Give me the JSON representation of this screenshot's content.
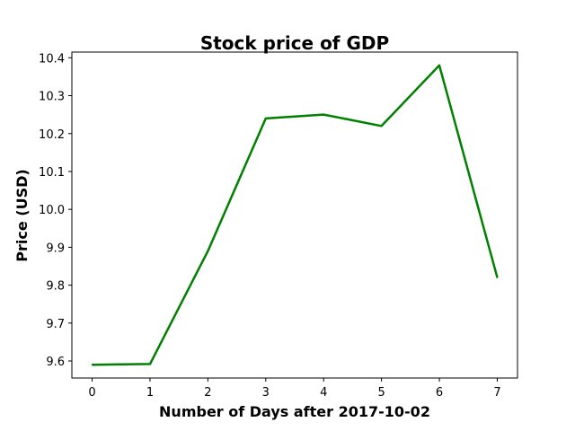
{
  "chart_data": {
    "type": "line",
    "title": "Stock price of GDP",
    "xlabel": "Number of Days after 2017-10-02",
    "ylabel": "Price (USD)",
    "x": [
      0,
      1,
      2,
      3,
      4,
      5,
      6,
      7
    ],
    "series": [
      {
        "values": [
          9.59,
          9.592,
          9.89,
          10.24,
          10.25,
          10.22,
          10.38,
          9.82
        ],
        "color": "#008000"
      }
    ],
    "xlim": [
      -0.35,
      7.35
    ],
    "ylim": [
      9.555,
      10.415
    ],
    "xticks": [
      0,
      1,
      2,
      3,
      4,
      5,
      6,
      7
    ],
    "yticks": [
      9.6,
      9.7,
      9.8,
      9.9,
      10.0,
      10.1,
      10.2,
      10.3,
      10.4
    ],
    "grid": false,
    "legend": false
  }
}
